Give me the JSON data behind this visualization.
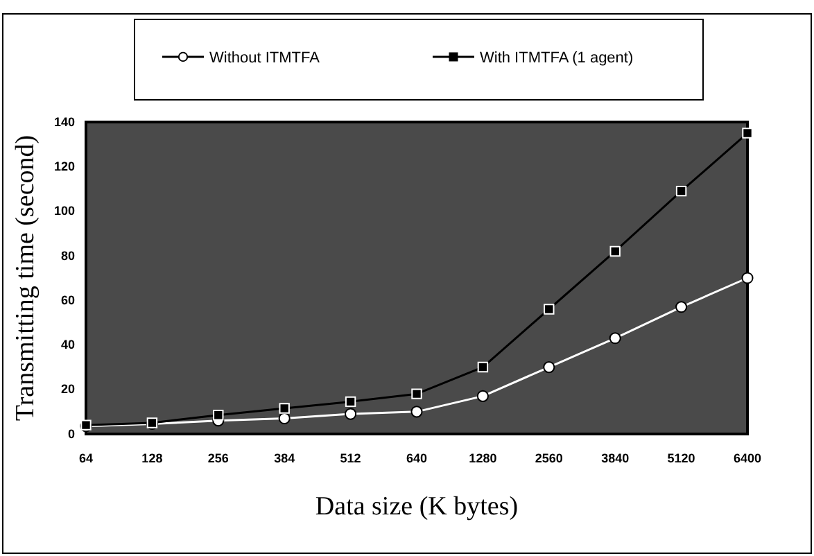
{
  "chart_data": {
    "type": "line",
    "xlabel": "Data size (K bytes)",
    "ylabel": "Transmitting time (second)",
    "categories": [
      "64",
      "128",
      "256",
      "384",
      "512",
      "640",
      "1280",
      "2560",
      "3840",
      "5120",
      "6400"
    ],
    "series": [
      {
        "name": "Without ITMTFA",
        "color": "#ffffff",
        "marker": "circle",
        "values": [
          3.5,
          4.5,
          6,
          7,
          9,
          10,
          17,
          30,
          43,
          57,
          70
        ]
      },
      {
        "name": "With ITMTFA (1 agent)",
        "color": "#000000",
        "marker": "square",
        "values": [
          4,
          5,
          8.5,
          11.5,
          14.5,
          18,
          30,
          56,
          82,
          109,
          135
        ]
      }
    ],
    "ylim": [
      0,
      140
    ],
    "yticks": [
      0,
      20,
      40,
      60,
      80,
      100,
      120,
      140
    ],
    "grid": false,
    "legend": "top",
    "line_style": "solid"
  }
}
